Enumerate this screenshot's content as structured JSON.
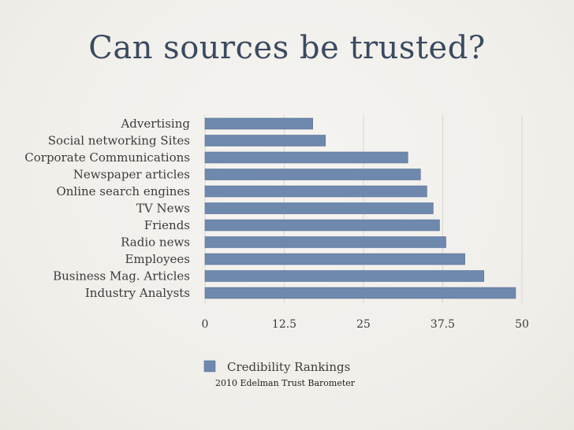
{
  "slide": {
    "title": "Can sources be trusted?"
  },
  "colors": {
    "bar": "#6f88ad",
    "bar_stroke": "#5a7398",
    "gridline": "#d8d6d2",
    "text": "#3b3b3b",
    "title": "#3a4a60"
  },
  "chart_data": {
    "type": "bar",
    "orientation": "horizontal",
    "categories": [
      "Advertising",
      "Social networking Sites",
      "Corporate Communications",
      "Newspaper articles",
      "Online search engines",
      "TV News",
      "Friends",
      "Radio news",
      "Employees",
      "Business Mag. Articles",
      "Industry Analysts"
    ],
    "series": [
      {
        "name": "Credibility Rankings",
        "values": [
          17,
          19,
          32,
          34,
          35,
          36,
          37,
          38,
          41,
          44,
          49
        ]
      }
    ],
    "xlim": [
      0,
      50
    ],
    "xticks": [
      "0",
      "12.5",
      "25",
      "37.5",
      "50"
    ],
    "grid": true,
    "legend": "bottom",
    "note": "2010 Edelman Trust Barometer"
  }
}
